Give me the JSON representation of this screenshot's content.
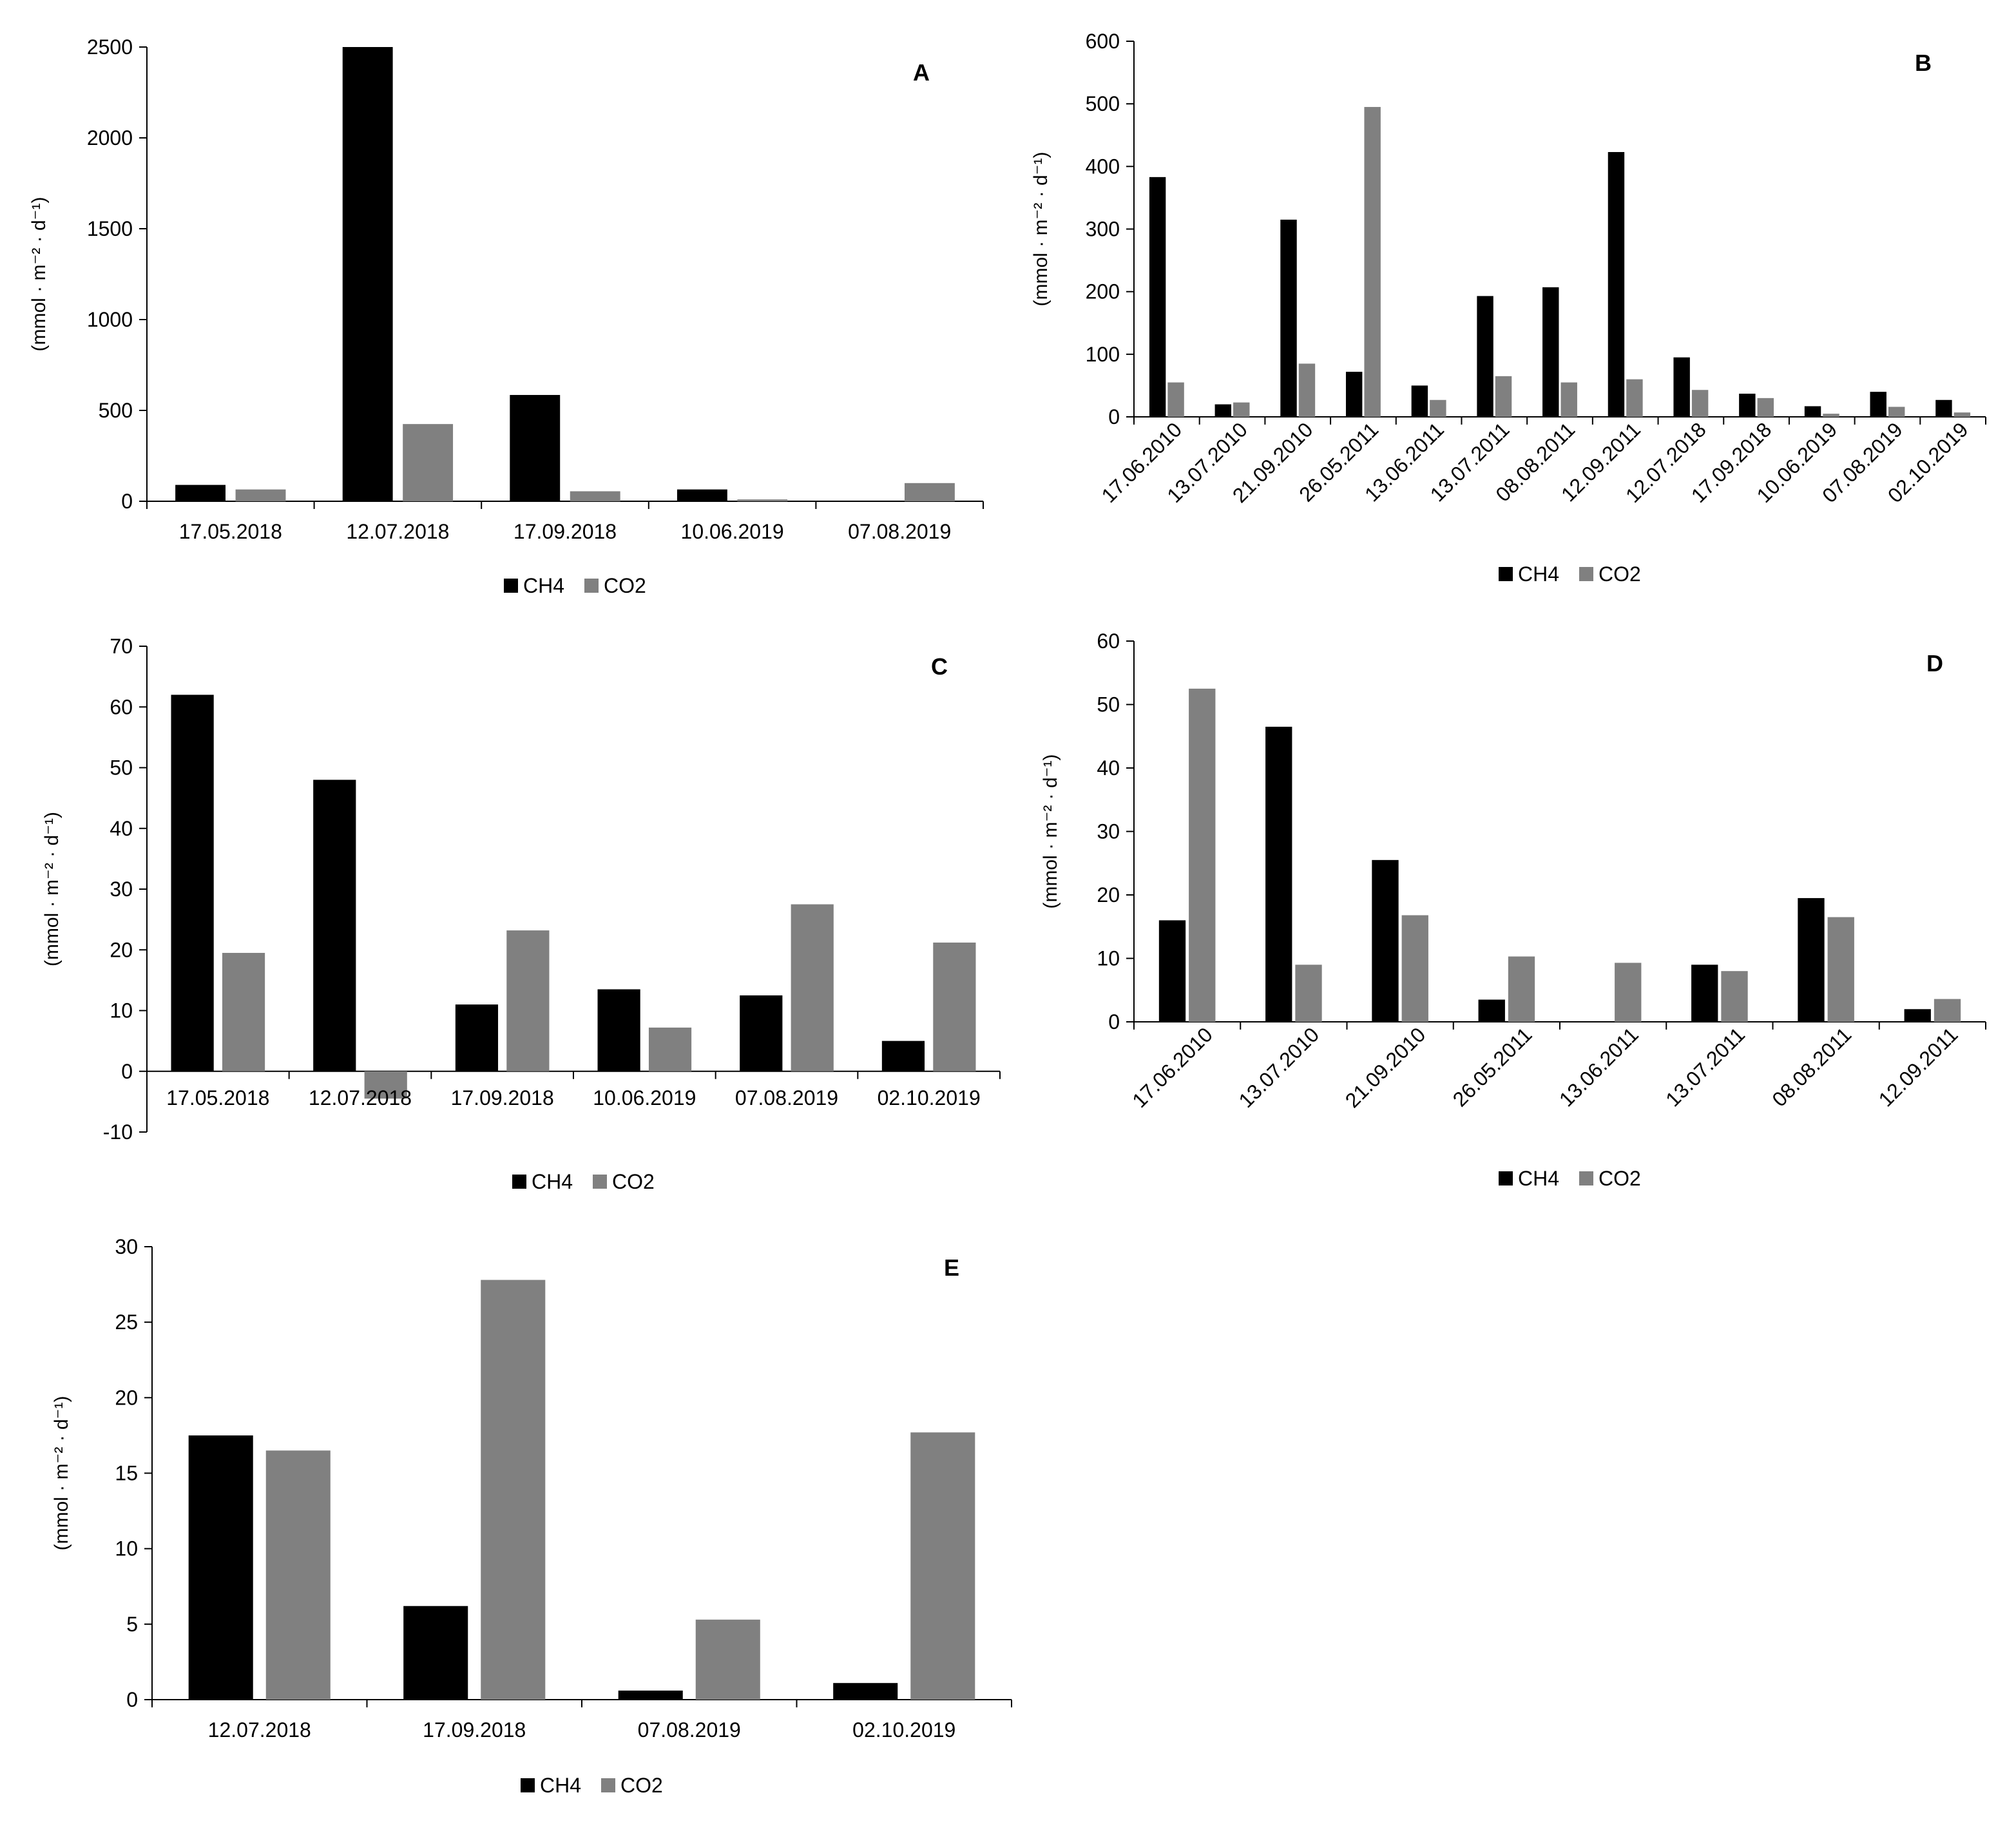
{
  "colors": {
    "ch4": "#000000",
    "co2": "#808080",
    "axis": "#000000"
  },
  "chart_data": [
    {
      "panel": "A",
      "type": "bar",
      "title": "A",
      "ylabel": "(mmol · m⁻² · d⁻¹)",
      "xlabel": "",
      "ylim": [
        0,
        2500
      ],
      "yticks": [
        0,
        500,
        1000,
        1500,
        2000,
        2500
      ],
      "grid": false,
      "legend": [
        "CH4",
        "CO2"
      ],
      "legend_position": "bottom",
      "categories": [
        "17.05.2018",
        "12.07.2018",
        "17.09.2018",
        "10.06.2019",
        "07.08.2019"
      ],
      "series": [
        {
          "name": "CH4",
          "values": [
            90,
            2500,
            585,
            65,
            0
          ]
        },
        {
          "name": "CO2",
          "values": [
            65,
            425,
            55,
            10,
            100
          ]
        }
      ]
    },
    {
      "panel": "B",
      "type": "bar",
      "title": "B",
      "ylabel": "(mmol · m⁻² · d⁻¹)",
      "xlabel": "",
      "ylim": [
        0,
        600
      ],
      "yticks": [
        0,
        100,
        200,
        300,
        400,
        500,
        600
      ],
      "grid": false,
      "legend": [
        "CH4",
        "CO2"
      ],
      "legend_position": "bottom",
      "rotate_labels": true,
      "categories": [
        "17.06.2010",
        "13.07.2010",
        "21.09.2010",
        "26.05.2011",
        "13.06.2011",
        "13.07.2011",
        "08.08.2011",
        "12.09.2011",
        "12.07.2018",
        "17.09.2018",
        "10.06.2019",
        "07.08.2019",
        "02.10.2019"
      ],
      "series": [
        {
          "name": "CH4",
          "values": [
            383,
            20,
            315,
            72,
            50,
            193,
            207,
            423,
            95,
            37,
            17,
            40,
            27
          ]
        },
        {
          "name": "CO2",
          "values": [
            55,
            23,
            85,
            495,
            27,
            65,
            55,
            60,
            43,
            30,
            5,
            16,
            7
          ]
        }
      ]
    },
    {
      "panel": "C",
      "type": "bar",
      "title": "C",
      "ylabel": "(mmol · m⁻² · d⁻¹)",
      "xlabel": "",
      "ylim": [
        -10,
        70
      ],
      "yticks": [
        -10,
        0,
        10,
        20,
        30,
        40,
        50,
        60,
        70
      ],
      "grid": false,
      "legend": [
        "CH4",
        "CO2"
      ],
      "legend_position": "bottom",
      "categories": [
        "17.05.2018",
        "12.07.2018",
        "17.09.2018",
        "10.06.2019",
        "07.08.2019",
        "02.10.2019"
      ],
      "series": [
        {
          "name": "CH4",
          "values": [
            62,
            48,
            11,
            13.5,
            12.5,
            5
          ]
        },
        {
          "name": "CO2",
          "values": [
            19.5,
            -4.5,
            23.2,
            7.2,
            27.5,
            21.2
          ]
        }
      ]
    },
    {
      "panel": "D",
      "type": "bar",
      "title": "D",
      "ylabel": "(mmol · m⁻² · d⁻¹)",
      "xlabel": "",
      "ylim": [
        0,
        60
      ],
      "yticks": [
        0,
        10,
        20,
        30,
        40,
        50,
        60
      ],
      "grid": false,
      "legend": [
        "CH4",
        "CO2"
      ],
      "legend_position": "bottom",
      "rotate_labels": true,
      "categories": [
        "17.06.2010",
        "13.07.2010",
        "21.09.2010",
        "26.05.2011",
        "13.06.2011",
        "13.07.2011",
        "08.08.2011",
        "12.09.2011"
      ],
      "series": [
        {
          "name": "CH4",
          "values": [
            16,
            46.5,
            25.5,
            3.5,
            0,
            9,
            19.5,
            2
          ]
        },
        {
          "name": "CO2",
          "values": [
            52.5,
            9,
            16.8,
            10.3,
            9.3,
            8,
            16.5,
            3.6
          ]
        }
      ]
    },
    {
      "panel": "E",
      "type": "bar",
      "title": "E",
      "ylabel": "(mmol · m⁻² · d⁻¹)",
      "xlabel": "",
      "ylim": [
        0,
        30
      ],
      "yticks": [
        0,
        5,
        10,
        15,
        20,
        25,
        30
      ],
      "grid": false,
      "legend": [
        "CH4",
        "CO2"
      ],
      "legend_position": "bottom",
      "categories": [
        "12.07.2018",
        "17.09.2018",
        "07.08.2019",
        "02.10.2019"
      ],
      "series": [
        {
          "name": "CH4",
          "values": [
            17.5,
            6.2,
            0.6,
            1.1
          ]
        },
        {
          "name": "CO2",
          "values": [
            16.5,
            27.8,
            5.3,
            17.7
          ]
        }
      ]
    }
  ]
}
